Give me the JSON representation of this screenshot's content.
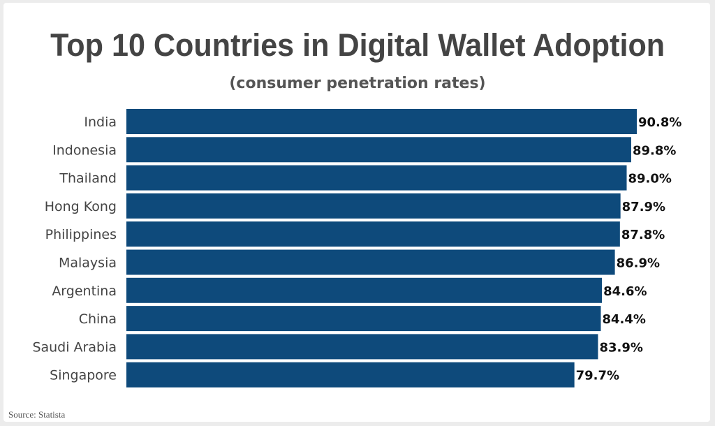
{
  "chart_data": {
    "type": "bar",
    "orientation": "horizontal",
    "title": "Top 10 Countries in Digital Wallet Adoption",
    "subtitle": "(consumer penetration rates)",
    "categories": [
      "India",
      "Indonesia",
      "Thailand",
      "Hong Kong",
      "Philippines",
      "Malaysia",
      "Argentina",
      "China",
      "Saudi Arabia",
      "Singapore"
    ],
    "values": [
      90.8,
      89.8,
      89.0,
      87.9,
      87.8,
      86.9,
      84.6,
      84.4,
      83.9,
      79.7
    ],
    "value_suffix": "%",
    "xlim": [
      0,
      100
    ],
    "grid": false,
    "bar_color": "#0e4a7b",
    "source": "Source: Statista"
  }
}
